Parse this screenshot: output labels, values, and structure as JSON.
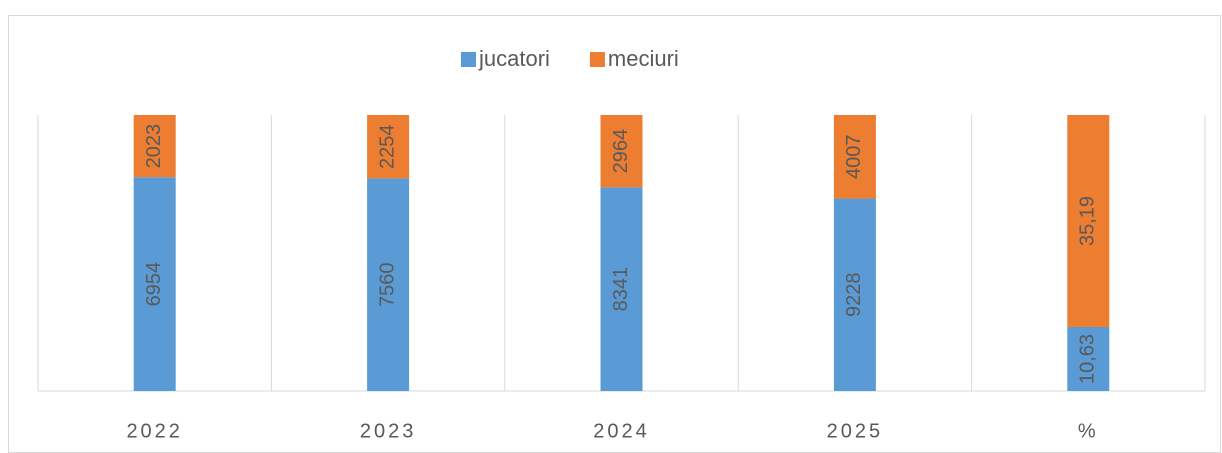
{
  "chart_data": {
    "type": "bar",
    "stacked": "percent",
    "legend": "top",
    "categories": [
      "2022",
      "2023",
      "2024",
      "2025",
      "%"
    ],
    "series": [
      {
        "name": "jucatori",
        "color": "#5b9bd5",
        "values": [
          6954,
          7560,
          8341,
          9228,
          10.63
        ],
        "value_labels": [
          "6954",
          "7560",
          "8341",
          "9228",
          "10,63"
        ]
      },
      {
        "name": "meciuri",
        "color": "#ed7d31",
        "values": [
          2023,
          2254,
          2964,
          4007,
          35.19
        ],
        "value_labels": [
          "2023",
          "2254",
          "2964",
          "4007",
          "35,19"
        ]
      }
    ]
  }
}
